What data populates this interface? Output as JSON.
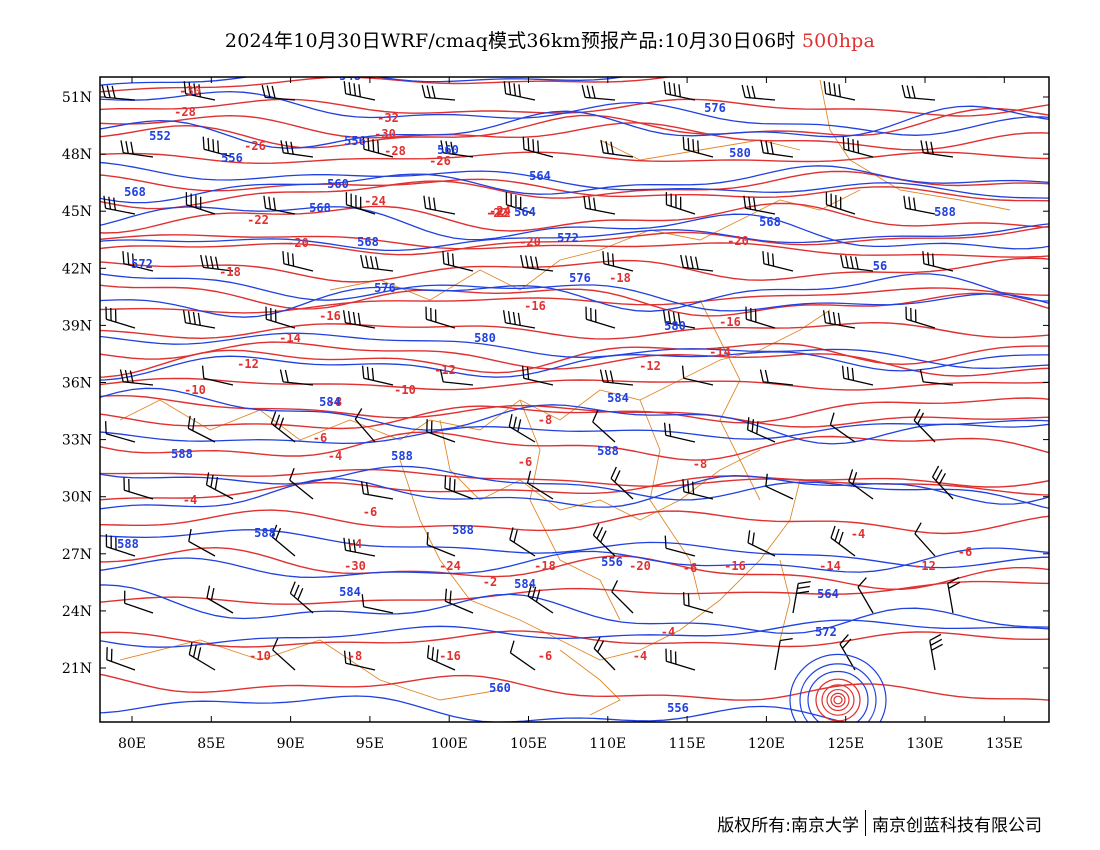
{
  "title": {
    "main": "2024年10月30日WRF/cmaq模式36km预报产品:10月30日06时",
    "level": "500hpa"
  },
  "axes": {
    "lat_labels": [
      "51N",
      "48N",
      "45N",
      "42N",
      "39N",
      "36N",
      "33N",
      "30N",
      "27N",
      "24N",
      "21N"
    ],
    "lon_labels": [
      "80E",
      "85E",
      "90E",
      "95E",
      "100E",
      "105E",
      "110E",
      "115E",
      "120E",
      "125E",
      "130E",
      "135E"
    ]
  },
  "colors": {
    "temperature_contour": "#e03030",
    "height_contour": "#2040e0",
    "boundary": "#e08a2c",
    "wind_barb": "#000000"
  },
  "temperature_labels": [
    "-30",
    "-28",
    "-26",
    "-32",
    "-30",
    "-28",
    "-26",
    "-24",
    "-22",
    "-24",
    "-22",
    "-20",
    "-22",
    "-20",
    "-20",
    "-18",
    "-18",
    "-16",
    "-16",
    "-16",
    "-14",
    "-14",
    "-12",
    "-12",
    "-12",
    "-10",
    "-10",
    "-8",
    "-8",
    "-6",
    "-8",
    "-6",
    "-4",
    "-6",
    "-4",
    "-4",
    "-2",
    "-6",
    "-4",
    "-4",
    "-6",
    "-30",
    "-24",
    "-18",
    "-20",
    "-16",
    "-14",
    "-12",
    "-10",
    "-8",
    "-16",
    "-6",
    "-4"
  ],
  "height_labels": [
    "548",
    "552",
    "556",
    "556",
    "560",
    "560",
    "564",
    "568",
    "568",
    "564",
    "568",
    "572",
    "572",
    "576",
    "576",
    "580",
    "580",
    "584",
    "584",
    "588",
    "588",
    "588",
    "588",
    "588",
    "588",
    "584",
    "584",
    "556",
    "560",
    "556",
    "564",
    "572",
    "576",
    "580",
    "588",
    "568",
    "56"
  ],
  "footer": {
    "copyright": "版权所有:南京大学",
    "company": "南京创蓝科技有限公司"
  }
}
